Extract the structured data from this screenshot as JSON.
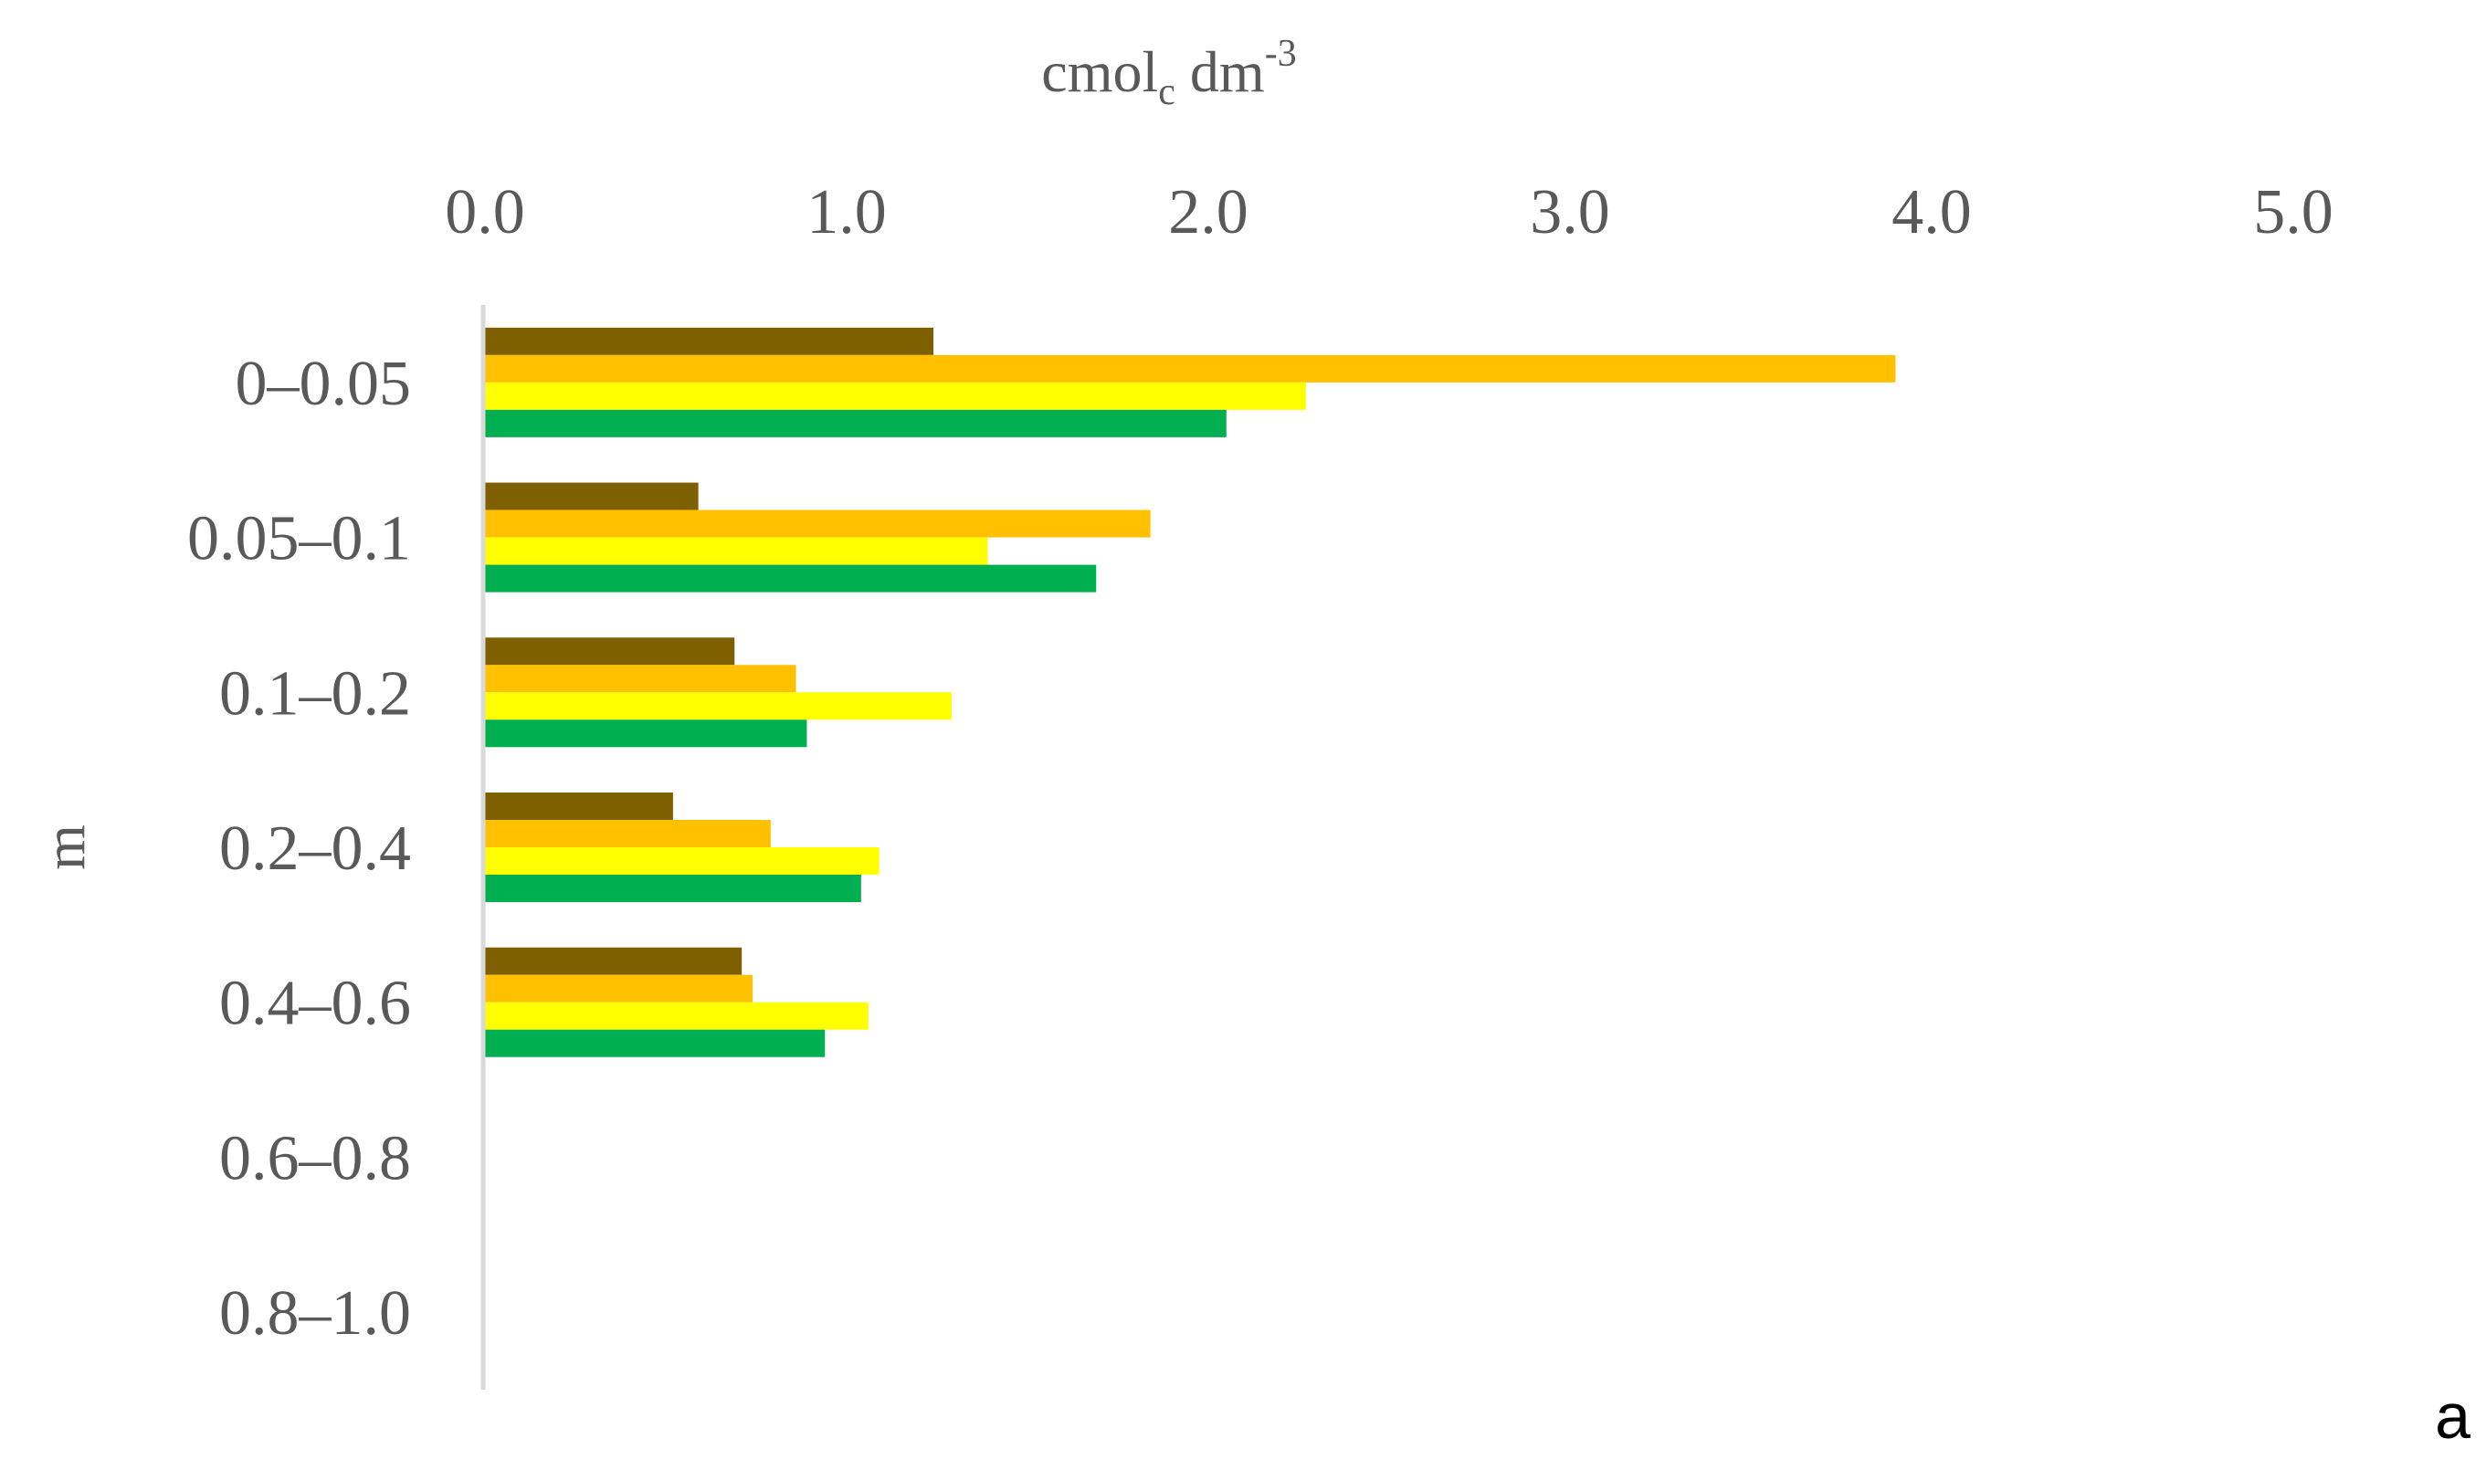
{
  "chart_data": {
    "type": "bar",
    "orientation": "horizontal",
    "categories": [
      "0–0.05",
      "0.05–0.1",
      "0.1–0.2",
      "0.2–0.4",
      "0.4–0.6",
      "0.6–0.8",
      "0.8–1.0"
    ],
    "series": [
      {
        "color": "#7F6000",
        "values": [
          1.24,
          0.59,
          0.69,
          0.52,
          0.71,
          null,
          null
        ]
      },
      {
        "color": "#FFC000",
        "values": [
          3.9,
          1.84,
          0.86,
          0.79,
          0.74,
          null,
          null
        ]
      },
      {
        "color": "#FFFF00",
        "values": [
          2.27,
          1.39,
          1.29,
          1.09,
          1.06,
          null,
          null
        ]
      },
      {
        "color": "#00B050",
        "values": [
          2.05,
          1.69,
          0.89,
          1.04,
          0.94,
          null,
          null
        ]
      }
    ],
    "xlabel": {
      "main": "cmol",
      "sub": "c",
      "rest": " dm",
      "sup": "-3"
    },
    "ylabel": "m",
    "xlim": [
      0,
      5
    ],
    "xticks": [
      "0.0",
      "1.0",
      "2.0",
      "3.0",
      "4.0",
      "5.0"
    ],
    "x_axis_position": "top",
    "category_order": "top-to-bottom",
    "grid": false,
    "legend": "none",
    "panel_label": "a"
  }
}
